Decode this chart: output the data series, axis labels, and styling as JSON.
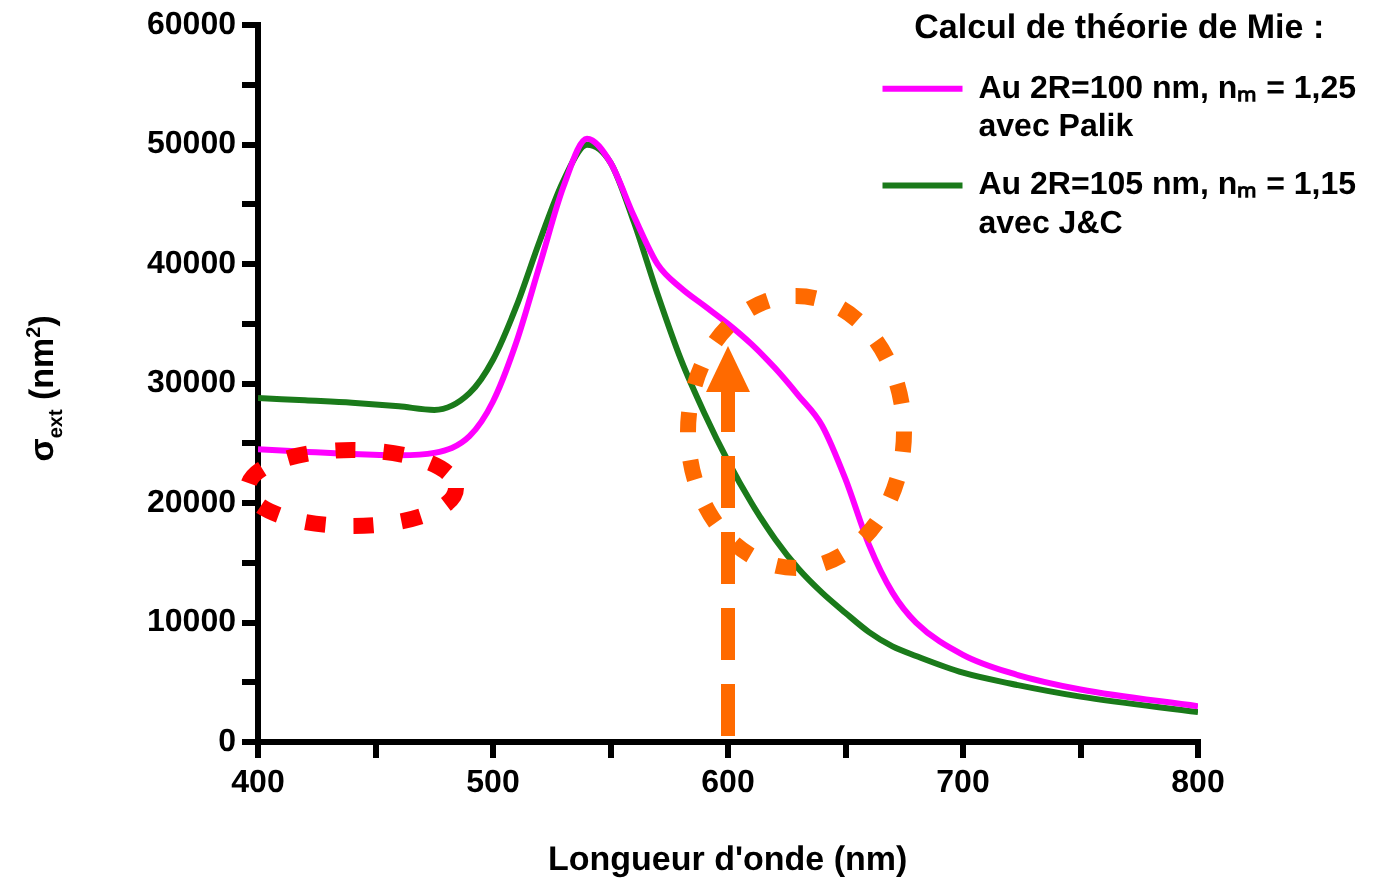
{
  "chart_data": {
    "type": "line",
    "xlabel": "Longueur d'onde (nm)",
    "ylabel": "σ$_{ext}$ (nm$^{2}$)",
    "legend_title": "Calcul de théorie de Mie :",
    "legend": "top right",
    "grid": false,
    "marker": "none",
    "line_style": "solid",
    "x": [
      400,
      420,
      440,
      460,
      475,
      490,
      500,
      510,
      520,
      530,
      540,
      550,
      560,
      570,
      580,
      590,
      600,
      610,
      620,
      630,
      640,
      650,
      660,
      670,
      680,
      700,
      720,
      750,
      800
    ],
    "xlim": [
      400,
      800
    ],
    "xticks": [
      400,
      {
        "value": 450,
        "label": null
      },
      500,
      {
        "value": 550,
        "label": null
      },
      600,
      {
        "value": 650,
        "label": null
      },
      700,
      {
        "value": 750,
        "label": null
      },
      800
    ],
    "ylim": [
      0,
      60000
    ],
    "yticks": [
      0,
      {
        "value": 5000,
        "label": null
      },
      10000,
      {
        "value": 15000,
        "label": null
      },
      20000,
      {
        "value": 25000,
        "label": null
      },
      30000,
      {
        "value": 35000,
        "label": null
      },
      40000,
      {
        "value": 45000,
        "label": null
      },
      50000,
      {
        "value": 55000,
        "label": null
      },
      60000
    ],
    "series": [
      {
        "name": "Au 2R=100 nm, nₘ = 1,25 avec Palik",
        "color": "#ff00ff",
        "values": [
          24500,
          24300,
          24100,
          24000,
          24200,
          25600,
          28500,
          33500,
          40000,
          46500,
          50500,
          48500,
          44000,
          40000,
          38000,
          36500,
          35000,
          33300,
          31300,
          29000,
          26500,
          22000,
          16500,
          12500,
          10000,
          7300,
          5800,
          4400,
          3000
        ]
      },
      {
        "name": "Au 2R=105 nm, nₘ = 1,15 avec J&C",
        "color": "#1a7a1a",
        "values": [
          28800,
          28600,
          28400,
          28100,
          27800,
          29200,
          32000,
          36500,
          42000,
          47000,
          50000,
          48500,
          43500,
          37500,
          32000,
          27500,
          23500,
          20000,
          17000,
          14500,
          12500,
          10800,
          9200,
          8000,
          7200,
          5800,
          4900,
          3800,
          2500
        ]
      }
    ]
  }
}
